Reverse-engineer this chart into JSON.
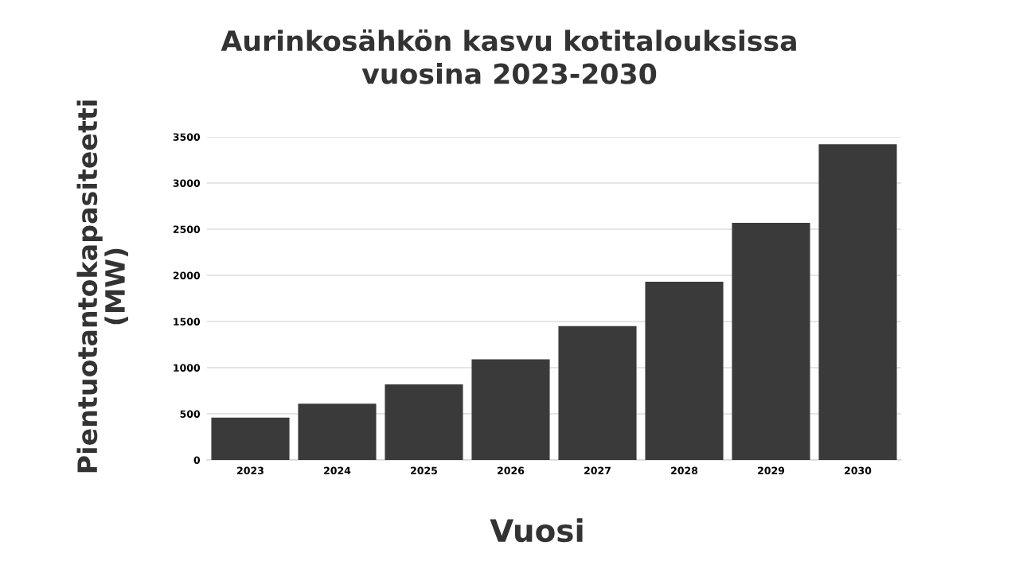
{
  "chart_data": {
    "type": "bar",
    "title": "Aurinkosähkön kasvu kotitalouksissa\nvuosina 2023-2030",
    "xlabel": "Vuosi",
    "ylabel": "Pientuotantokapasiteetti\n(MW)",
    "categories": [
      "2023",
      "2024",
      "2025",
      "2026",
      "2027",
      "2028",
      "2029",
      "2030"
    ],
    "values": [
      460,
      610,
      820,
      1090,
      1450,
      1930,
      2570,
      3420
    ],
    "color": "#3a3a3a",
    "ylim": [
      0,
      3500
    ],
    "yticks": [
      0,
      500,
      1000,
      1500,
      2000,
      2500,
      3000,
      3500
    ],
    "grid": "y"
  }
}
